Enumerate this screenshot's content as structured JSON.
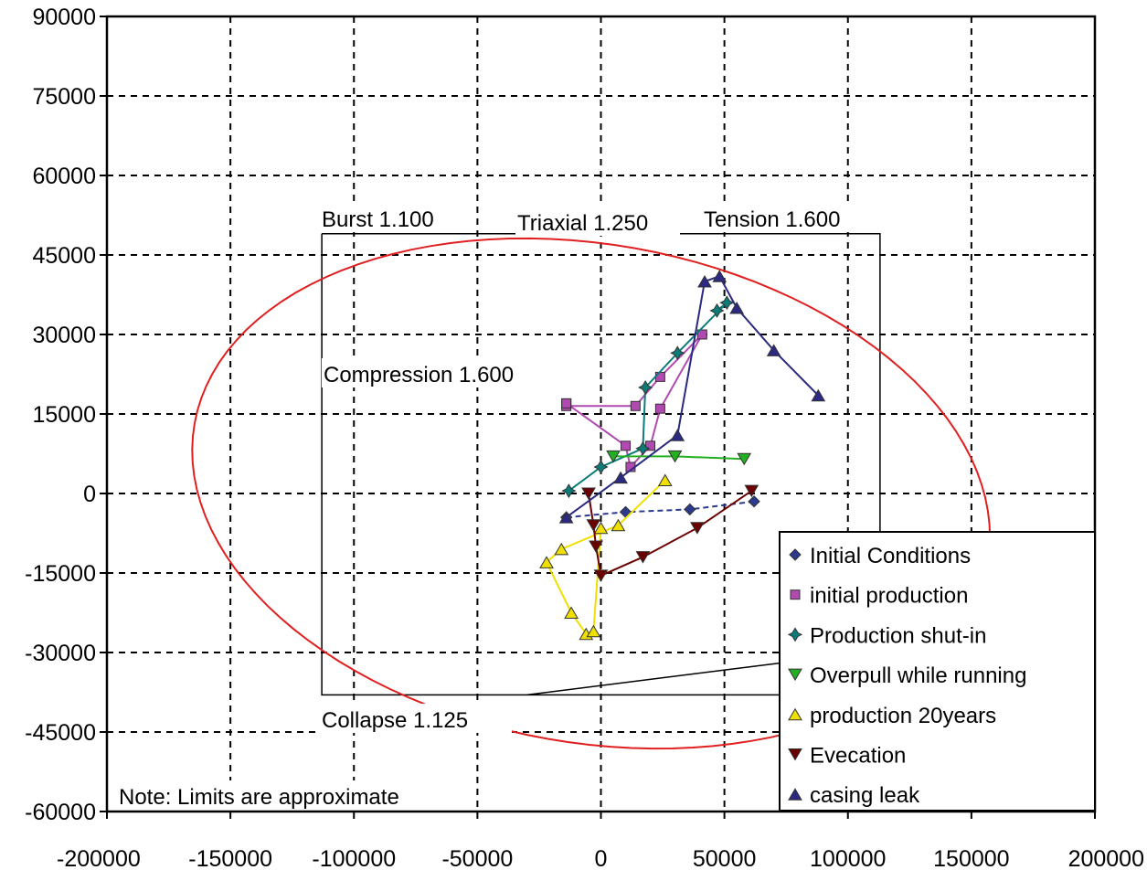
{
  "chart_data": {
    "type": "scatter",
    "title": "",
    "xlabel": "",
    "ylabel": "",
    "xlim": [
      -200000,
      200000
    ],
    "ylim": [
      -60000,
      90000
    ],
    "grid": true,
    "legend_position": "bottom-right",
    "x_ticks": [
      "-200000",
      "-150000",
      "-100000",
      "-50000",
      "0",
      "50000",
      "100000",
      "150000",
      "200000"
    ],
    "y_ticks": [
      "90000",
      "75000",
      "60000",
      "45000",
      "30000",
      "15000",
      "0",
      "-15000",
      "-30000",
      "-45000",
      "-60000"
    ],
    "envelope_labels": {
      "burst": "Burst 1.100",
      "triaxial": "Triaxial 1.250",
      "tension": "Tension 1.600",
      "compression": "Compression 1.600",
      "collapse": "Collapse 1.125"
    },
    "note": "Note: Limits are approximate",
    "limit_box": {
      "x": [
        -113000,
        113000
      ],
      "y": [
        -38000,
        49000
      ]
    },
    "triaxial_ellipse": {
      "cx": -4000,
      "cy": 0,
      "rx": 163000,
      "ry": 47000,
      "angle_deg": 10
    },
    "series": [
      {
        "name": "Initial Conditions",
        "color": "#2b3a8c",
        "marker": "diamond",
        "dash": "6,4",
        "points": [
          [
            -14000,
            -4500
          ],
          [
            10000,
            -3500
          ],
          [
            36000,
            -3000
          ],
          [
            62000,
            -1500
          ]
        ]
      },
      {
        "name": "initial production",
        "color": "#b04ab0",
        "marker": "square",
        "dash": "",
        "points": [
          [
            -14000,
            17000
          ],
          [
            -14000,
            16500
          ],
          [
            14000,
            16500
          ],
          [
            24000,
            22000
          ],
          [
            41000,
            30000
          ],
          [
            24000,
            16000
          ],
          [
            20000,
            9000
          ],
          [
            12000,
            5000
          ],
          [
            10000,
            9000
          ],
          [
            -14000,
            17000
          ]
        ]
      },
      {
        "name": "Production shut-in",
        "color": "#0c7c78",
        "marker": "star",
        "dash": "",
        "points": [
          [
            -13000,
            500
          ],
          [
            0,
            5000
          ],
          [
            17000,
            8500
          ],
          [
            18000,
            20000
          ],
          [
            31000,
            26500
          ],
          [
            51000,
            36000
          ],
          [
            47000,
            34500
          ]
        ]
      },
      {
        "name": "Overpull while running",
        "color": "#22b022",
        "marker": "triangle-down",
        "dash": "",
        "points": [
          [
            5000,
            7000
          ],
          [
            30000,
            7000
          ],
          [
            58000,
            6500
          ]
        ]
      },
      {
        "name": "production 20years",
        "color": "#f0e000",
        "marker": "triangle-up",
        "dash": "",
        "points": [
          [
            26000,
            2500
          ],
          [
            7000,
            -6000
          ],
          [
            -16000,
            -10500
          ],
          [
            -22000,
            -13000
          ],
          [
            -12000,
            -22500
          ],
          [
            -6000,
            -26500
          ],
          [
            -3000,
            -26000
          ],
          [
            0,
            -6500
          ]
        ]
      },
      {
        "name": "Evecation",
        "color": "#6b0000",
        "marker": "triangle-down",
        "dash": "",
        "points": [
          [
            61000,
            500
          ],
          [
            39000,
            -6500
          ],
          [
            17000,
            -12000
          ],
          [
            0,
            -15500
          ],
          [
            -2000,
            -10000
          ],
          [
            -3000,
            -6000
          ],
          [
            -5000,
            0
          ]
        ]
      },
      {
        "name": "casing leak",
        "color": "#2b2a80",
        "marker": "triangle-up",
        "dash": "",
        "points": [
          [
            -14000,
            -4500
          ],
          [
            8000,
            3000
          ],
          [
            31000,
            11000
          ],
          [
            42000,
            40000
          ],
          [
            48000,
            41000
          ],
          [
            55000,
            35000
          ],
          [
            70000,
            27000
          ],
          [
            88000,
            18500
          ]
        ]
      }
    ]
  }
}
